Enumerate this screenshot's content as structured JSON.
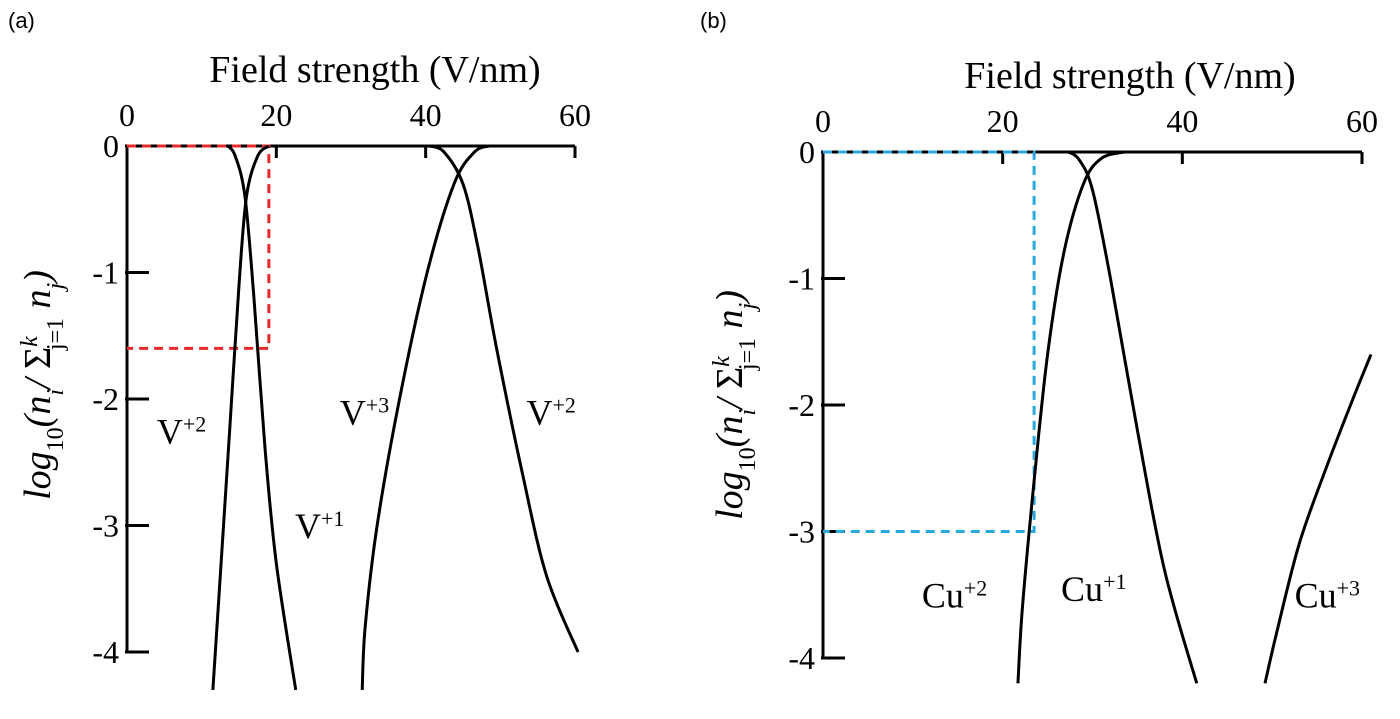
{
  "chart_data": [
    {
      "panel": "(a)",
      "type": "line",
      "xlabel": "Field strength (V/nm)",
      "ylabel": "log10(ni / Σ_{j=1}^{k} nj)",
      "xticks": [
        0,
        20,
        40,
        60
      ],
      "yticks": [
        0,
        -1,
        -2,
        -3,
        -4
      ],
      "xlim": [
        0,
        60
      ],
      "ylim": [
        -4.3,
        0
      ],
      "series": [
        {
          "name": "V+1",
          "color": "#000000",
          "points": [
            [
              13.5,
              0
            ],
            [
              14.5,
              -0.08
            ],
            [
              15.8,
              -0.4
            ],
            [
              17.0,
              -1.2
            ],
            [
              18.5,
              -2.4
            ],
            [
              20.0,
              -3.3
            ],
            [
              22.6,
              -4.3
            ]
          ]
        },
        {
          "name": "V+2",
          "color": "#000000",
          "points": [
            [
              11.5,
              -4.3
            ],
            [
              12.6,
              -3.3
            ],
            [
              13.8,
              -2.2
            ],
            [
              15.0,
              -1.1
            ],
            [
              16.0,
              -0.4
            ],
            [
              17.5,
              -0.08
            ],
            [
              19.0,
              0
            ]
          ]
        },
        {
          "name": "V+3",
          "color": "#000000",
          "points": [
            [
              31.5,
              -4.3
            ],
            [
              31.9,
              -3.8
            ],
            [
              33.5,
              -3.0
            ],
            [
              36.5,
              -2.0
            ],
            [
              40.2,
              -1.0
            ],
            [
              43.8,
              -0.3
            ],
            [
              46.5,
              -0.05
            ],
            [
              48.5,
              0
            ]
          ]
        },
        {
          "name": "V+2",
          "color": "#000000",
          "points": [
            [
              40.5,
              0
            ],
            [
              42.5,
              -0.05
            ],
            [
              45.0,
              -0.3
            ],
            [
              47.0,
              -0.8
            ],
            [
              49.5,
              -1.6
            ],
            [
              53.0,
              -2.6
            ],
            [
              56.2,
              -3.4
            ],
            [
              60.4,
              -4.0
            ]
          ]
        }
      ],
      "guides": {
        "color": "#e8292b",
        "y_level": -1.6,
        "x_level": 19.0
      },
      "series_labels": [
        {
          "base": "V",
          "sup": "+2",
          "x": 4.0,
          "y": -2.35
        },
        {
          "base": "V",
          "sup": "+1",
          "x": 22.5,
          "y": -3.1
        },
        {
          "base": "V",
          "sup": "+3",
          "x": 28.5,
          "y": -2.2
        },
        {
          "base": "V",
          "sup": "+2",
          "x": 53.5,
          "y": -2.2
        }
      ]
    },
    {
      "panel": "(b)",
      "type": "line",
      "xlabel": "Field strength (V/nm)",
      "ylabel": "log10(ni / Σ_{j=1}^{k} nj)",
      "xticks": [
        0,
        20,
        40,
        60
      ],
      "yticks": [
        0,
        -1,
        -2,
        -3,
        -4
      ],
      "xlim": [
        0,
        60
      ],
      "ylim": [
        -4.3,
        0
      ],
      "series": [
        {
          "name": "Cu+1",
          "color": "#000000",
          "points": [
            [
              27.3,
              0
            ],
            [
              28.5,
              -0.06
            ],
            [
              30.0,
              -0.3
            ],
            [
              32.0,
              -1.0
            ],
            [
              35.0,
              -2.2
            ],
            [
              38.0,
              -3.3
            ],
            [
              41.6,
              -4.2
            ]
          ]
        },
        {
          "name": "Cu+2",
          "color": "#000000",
          "points": [
            [
              21.7,
              -4.2
            ],
            [
              22.2,
              -3.6
            ],
            [
              23.5,
              -2.6
            ],
            [
              25.0,
              -1.6
            ],
            [
              26.8,
              -0.8
            ],
            [
              29.0,
              -0.25
            ],
            [
              31.0,
              -0.05
            ],
            [
              33.5,
              0
            ]
          ]
        },
        {
          "name": "Cu+3",
          "color": "#000000",
          "points": [
            [
              49.2,
              -4.2
            ],
            [
              50.5,
              -3.8
            ],
            [
              53.0,
              -3.1
            ],
            [
              56.0,
              -2.5
            ],
            [
              59.0,
              -1.95
            ],
            [
              61.0,
              -1.6
            ]
          ]
        }
      ],
      "guides": {
        "color": "#29a9e0",
        "y_level": -3.0,
        "x_level": 23.5
      },
      "series_labels": [
        {
          "base": "Cu",
          "sup": "+2",
          "x": 11.0,
          "y": -3.6
        },
        {
          "base": "Cu",
          "sup": "+1",
          "x": 26.5,
          "y": -3.55
        },
        {
          "base": "Cu",
          "sup": "+3",
          "x": 52.5,
          "y": -3.6
        }
      ]
    }
  ]
}
